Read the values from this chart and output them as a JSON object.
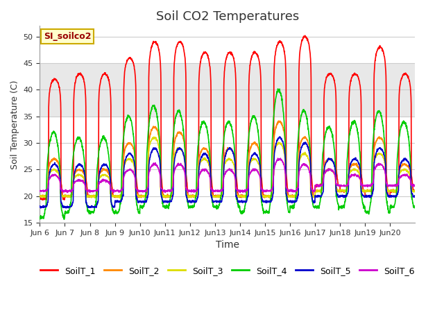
{
  "title": "Soil CO2 Temperatures",
  "xlabel": "Time",
  "ylabel": "Soil Temperature (C)",
  "ylim": [
    15,
    52
  ],
  "yticks": [
    15,
    20,
    25,
    30,
    35,
    40,
    45,
    50
  ],
  "annotation_text": "SI_soilco2",
  "annotation_bg": "#ffffcc",
  "annotation_border": "#ccaa00",
  "annotation_text_color": "#990000",
  "series_colors": [
    "#ff0000",
    "#ff8800",
    "#dddd00",
    "#00cc00",
    "#0000cc",
    "#cc00cc"
  ],
  "series_labels": [
    "SoilT_1",
    "SoilT_2",
    "SoilT_3",
    "SoilT_4",
    "SoilT_5",
    "SoilT_6"
  ],
  "fig_bg_color": "#ffffff",
  "plot_bg_color": "#ffffff",
  "grid_color": "#cccccc",
  "shade_band1": [
    35.0,
    45.0
  ],
  "shade_color1": "#e8e8e8",
  "n_days": 15,
  "start_day": 6,
  "points_per_day": 144,
  "figsize": [
    6.4,
    4.8
  ],
  "dpi": 100
}
